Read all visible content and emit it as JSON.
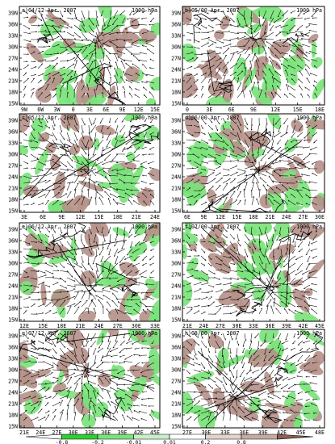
{
  "figure": {
    "colors": {
      "green": "#7be37b",
      "brown": "#b5938a",
      "frame": "#000000",
      "vector": "#000000"
    },
    "panels": [
      {
        "title": "a)04/12 Apr. 2007",
        "level": "1000 hPa",
        "lon_labels": [
          "9W",
          "6W",
          "3W",
          "0",
          "3E",
          "6E",
          "9E",
          "12E",
          "15E"
        ],
        "lat_labels": [
          "39N",
          "36N",
          "33N",
          "30N",
          "27N",
          "24N",
          "21N",
          "18N",
          "15N"
        ]
      },
      {
        "title": "b)05/00 Apr. 2007",
        "level": "1000 hPa",
        "lon_labels": [
          "0",
          "3E",
          "6E",
          "9E",
          "12E",
          "15E",
          "18E"
        ],
        "lat_labels": [
          "39N",
          "36N",
          "33N",
          "30N",
          "27N",
          "24N",
          "21N",
          "18N",
          "15N"
        ]
      },
      {
        "title": "c)05/12 Apr. 2007",
        "level": "1000 hPa",
        "lon_labels": [
          "3E",
          "6E",
          "9E",
          "12E",
          "15E",
          "18E",
          "21E",
          "24E"
        ],
        "lat_labels": [
          "39N",
          "36N",
          "33N",
          "30N",
          "27N",
          "24N",
          "21N",
          "18N",
          "15N"
        ]
      },
      {
        "title": "d)06/00 Apr. 2007",
        "level": "1000 hPa",
        "lon_labels": [
          "6E",
          "9E",
          "12E",
          "15E",
          "18E",
          "21E",
          "24E",
          "27E",
          "30E"
        ],
        "lat_labels": [
          "39N",
          "36N",
          "33N",
          "30N",
          "27N",
          "24N",
          "21N",
          "18N",
          "15N"
        ]
      },
      {
        "title": "e)06/12 Apr. 2007",
        "level": "1000 hPa",
        "lon_labels": [
          "12E",
          "15E",
          "18E",
          "21E",
          "24E",
          "27E",
          "30E",
          "33E"
        ],
        "lat_labels": [
          "39N",
          "36N",
          "33N",
          "30N",
          "27N",
          "24N",
          "21N",
          "18N",
          "15N"
        ]
      },
      {
        "title": "f)07/00 Apr. 2007",
        "level": "1000 hPa",
        "lon_labels": [
          "21E",
          "24E",
          "27E",
          "30E",
          "33E",
          "36E",
          "39E",
          "42E",
          "45E"
        ],
        "lat_labels": [
          "39N",
          "36N",
          "33N",
          "30N",
          "27N",
          "24N",
          "21N",
          "18N",
          "15N"
        ]
      },
      {
        "title": "g)07/12 Apr. 2007",
        "level": "1000 hPa",
        "lon_labels": [
          "21E",
          "24E",
          "27E",
          "30E",
          "33E",
          "36E",
          "39E",
          "42E",
          "45E"
        ],
        "lat_labels": [
          "39N",
          "36N",
          "33N",
          "30N",
          "27N",
          "24N",
          "21N",
          "18N",
          "15N"
        ]
      },
      {
        "title": "h)08/00 Apr. 2007",
        "level": "1000 hPa",
        "lon_labels": [
          "27E",
          "30E",
          "33E",
          "36E",
          "39E",
          "42E",
          "45E",
          "48E"
        ],
        "lat_labels": [
          "39N",
          "36N",
          "33N",
          "30N",
          "27N",
          "24N",
          "21N",
          "18N",
          "15N"
        ]
      }
    ],
    "colorbar": {
      "labels": [
        "-0.8",
        "-0.2",
        "-0.01",
        "0.01",
        "0.2",
        "0.8"
      ],
      "colors": [
        "#ffffff",
        "#2fd02f",
        "#7be37b",
        "#c7f0c7",
        "#ffffff",
        "#e2d3cf",
        "#c6aaa2",
        "#8f5f4f"
      ]
    }
  }
}
